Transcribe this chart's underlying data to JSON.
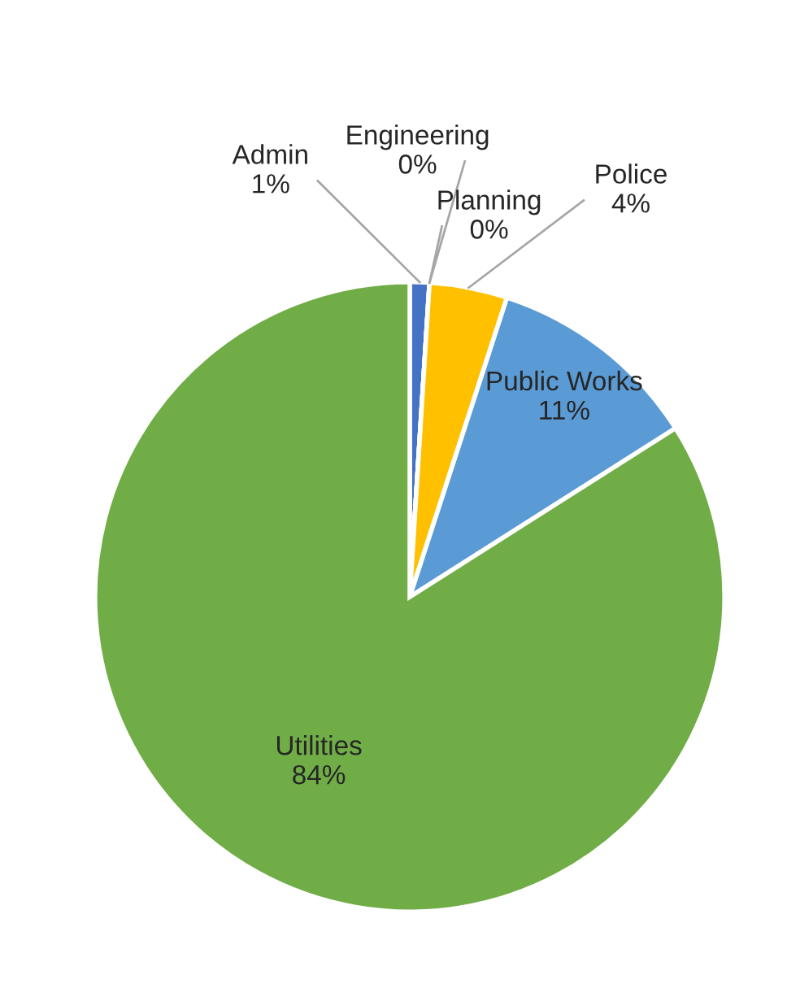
{
  "chart_data": {
    "type": "pie",
    "categories": [
      "Admin",
      "Engineering",
      "Planning",
      "Police",
      "Public Works",
      "Utilities"
    ],
    "values": [
      1,
      0,
      0,
      4,
      11,
      84
    ],
    "colors": [
      "#4472c4",
      "#ed7d31",
      "#a5a5a5",
      "#ffc000",
      "#5b9bd5",
      "#70ad47"
    ],
    "value_labels": [
      "1%",
      "0%",
      "0%",
      "4%",
      "11%",
      "84%"
    ],
    "legend": false
  }
}
